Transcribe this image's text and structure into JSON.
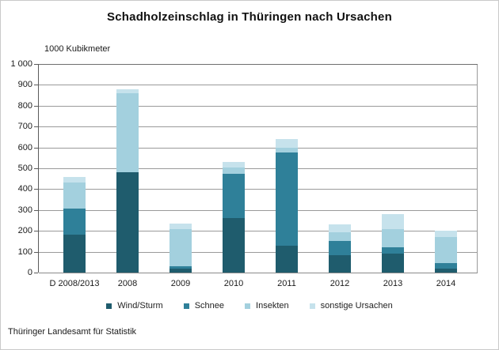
{
  "chart_data": {
    "type": "bar",
    "stacked": true,
    "title": "Schadholzeinschlag in Thüringen nach Ursachen",
    "unit_label": "1000 Kubikmeter",
    "categories": [
      "D 2008/2013",
      "2008",
      "2009",
      "2010",
      "2011",
      "2012",
      "2013",
      "2014"
    ],
    "series": [
      {
        "name": "Wind/Sturm",
        "color": "#1f5c6d",
        "values": [
          180,
          480,
          20,
          260,
          130,
          85,
          90,
          20
        ]
      },
      {
        "name": "Schnee",
        "color": "#2f8099",
        "values": [
          125,
          0,
          10,
          215,
          445,
          65,
          30,
          25
        ]
      },
      {
        "name": "Insekten",
        "color": "#a3d0de",
        "values": [
          125,
          380,
          180,
          30,
          25,
          45,
          90,
          125
        ]
      },
      {
        "name": "sonstige Ursachen",
        "color": "#c6e2ec",
        "values": [
          30,
          20,
          25,
          25,
          40,
          35,
          70,
          30
        ]
      }
    ],
    "ylim": [
      0,
      1000
    ],
    "ytick_step": 100,
    "ytick_labels": [
      "1 000",
      "900",
      "800",
      "700",
      "600",
      "500",
      "400",
      "300",
      "200",
      "100",
      "0"
    ],
    "grid": true,
    "legend_position": "bottom"
  },
  "footer": {
    "source": "Thüringer Landesamt für Statistik"
  }
}
